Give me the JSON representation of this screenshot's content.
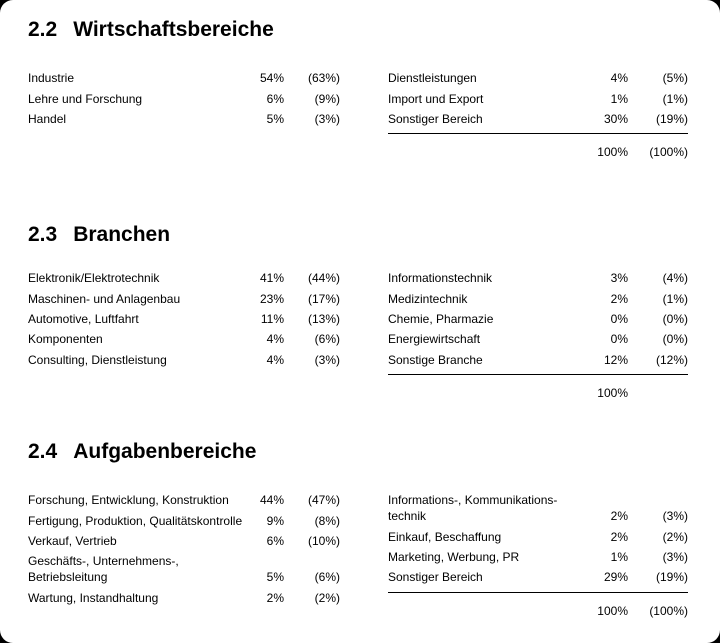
{
  "page": {
    "paper_color": "#ffffff",
    "corner_color": "#000000",
    "text_color": "#000000"
  },
  "sections": [
    {
      "number": "2.2",
      "title": "Wirtschaftsbereiche",
      "left": {
        "rows": [
          {
            "label": "Industrie",
            "value": "54%",
            "prev": "(63%)"
          },
          {
            "label": "Lehre und Forschung",
            "value": "6%",
            "prev": "(9%)"
          },
          {
            "label": "Handel",
            "value": "5%",
            "prev": "(3%)"
          }
        ]
      },
      "right": {
        "rows": [
          {
            "label": "Dienstleistungen",
            "value": "4%",
            "prev": "(5%)"
          },
          {
            "label": "Import und Export",
            "value": "1%",
            "prev": "(1%)"
          },
          {
            "label": "Sonstiger Bereich",
            "value": "30%",
            "prev": "(19%)"
          }
        ],
        "total": {
          "value": "100%",
          "prev": "(100%)"
        }
      }
    },
    {
      "number": "2.3",
      "title": "Branchen",
      "left": {
        "rows": [
          {
            "label": "Elektronik/Elektrotechnik",
            "value": "41%",
            "prev": "(44%)"
          },
          {
            "label": "Maschinen- und Anlagenbau",
            "value": "23%",
            "prev": "(17%)"
          },
          {
            "label": "Automotive, Luftfahrt",
            "value": "11%",
            "prev": "(13%)"
          },
          {
            "label": "Komponenten",
            "value": "4%",
            "prev": "(6%)"
          },
          {
            "label": "Consulting, Dienstleistung",
            "value": "4%",
            "prev": "(3%)"
          }
        ]
      },
      "right": {
        "rows": [
          {
            "label": "Informationstechnik",
            "value": "3%",
            "prev": "(4%)"
          },
          {
            "label": "Medizintechnik",
            "value": "2%",
            "prev": "(1%)"
          },
          {
            "label": "Chemie, Pharmazie",
            "value": "0%",
            "prev": "(0%)"
          },
          {
            "label": "Energiewirtschaft",
            "value": "0%",
            "prev": "(0%)"
          },
          {
            "label": "Sonstige Branche",
            "value": "12%",
            "prev": "(12%)"
          }
        ],
        "total": {
          "value": "100%",
          "prev": ""
        }
      }
    },
    {
      "number": "2.4",
      "title": "Aufgabenbereiche",
      "left": {
        "rows": [
          {
            "label": "Forschung, Entwicklung, Konstruktion",
            "value": "44%",
            "prev": "(47%)"
          },
          {
            "label": "Fertigung, Produktion, Qualitätskontrolle",
            "value": "9%",
            "prev": "(8%)"
          },
          {
            "label": "Verkauf, Vertrieb",
            "value": "6%",
            "prev": "(10%)"
          },
          {
            "label": "Geschäfts-, Unternehmens-,\nBetriebsleitung",
            "value": "5%",
            "prev": "(6%)"
          },
          {
            "label": "Wartung, Instandhaltung",
            "value": "2%",
            "prev": "(2%)"
          }
        ]
      },
      "right": {
        "rows": [
          {
            "label": "Informations-, Kommunikations-\ntechnik",
            "value": "2%",
            "prev": "(3%)"
          },
          {
            "label": "Einkauf, Beschaffung",
            "value": "2%",
            "prev": "(2%)"
          },
          {
            "label": "Marketing, Werbung, PR",
            "value": "1%",
            "prev": "(3%)"
          },
          {
            "label": "Sonstiger Bereich",
            "value": "29%",
            "prev": "(19%)"
          }
        ],
        "total": {
          "value": "100%",
          "prev": "(100%)"
        }
      }
    }
  ]
}
